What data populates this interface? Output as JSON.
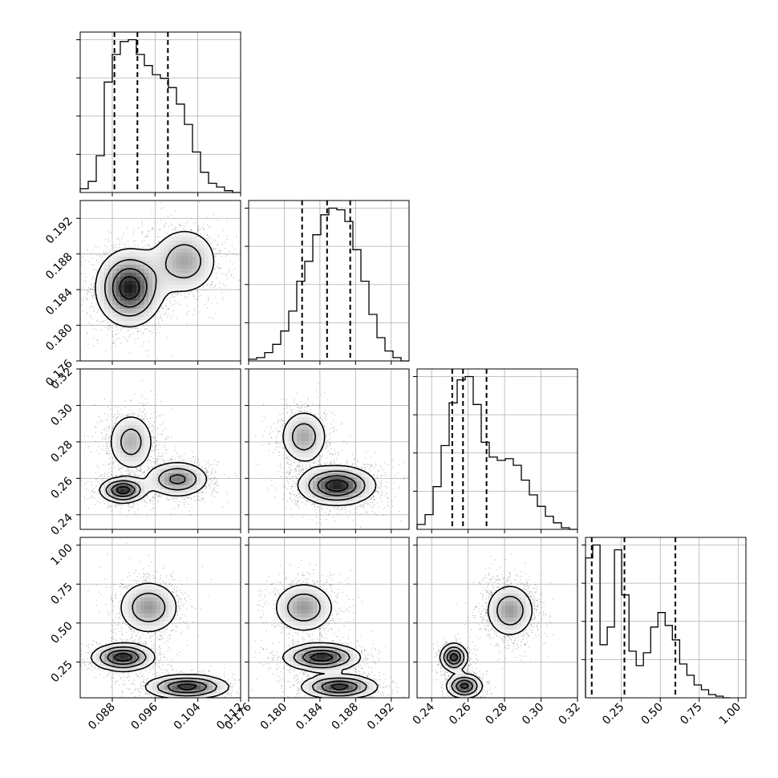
{
  "chart_data": {
    "type": "corner",
    "figure_style": {
      "histogram_color": "#000000",
      "density_color": "#000000",
      "grid": true,
      "quantile_line_style": "dashed"
    },
    "parameters": [
      {
        "range": [
          0.082,
          0.112
        ],
        "ticks": [
          0.088,
          0.096,
          0.104,
          0.112
        ],
        "tick_labels": [
          "0.088",
          "0.096",
          "0.104",
          "0.112"
        ],
        "quantiles": [
          0.0884,
          0.0927,
          0.0984
        ],
        "hist_edges_start": 0.082,
        "hist_bin_width": 0.0015,
        "hist_counts": [
          2,
          6,
          20,
          60,
          75,
          82,
          83,
          75,
          69,
          64,
          62,
          57,
          48,
          37,
          22,
          11,
          5,
          3,
          1,
          0
        ]
      },
      {
        "range": [
          0.176,
          0.194
        ],
        "ticks": [
          0.176,
          0.18,
          0.184,
          0.188,
          0.192
        ],
        "tick_labels": [
          "0.176",
          "0.180",
          "0.184",
          "0.188",
          "0.192"
        ],
        "quantiles": [
          0.182,
          0.1848,
          0.1874
        ],
        "hist_edges_start": 0.176,
        "hist_bin_width": 0.0009,
        "hist_counts": [
          1,
          2,
          5,
          10,
          18,
          30,
          48,
          60,
          76,
          88,
          92,
          91,
          84,
          67,
          48,
          28,
          14,
          6,
          2,
          0
        ]
      },
      {
        "range": [
          0.232,
          0.32
        ],
        "ticks": [
          0.24,
          0.26,
          0.28,
          0.3,
          0.32
        ],
        "tick_labels": [
          "0.24",
          "0.26",
          "0.28",
          "0.30",
          "0.32"
        ],
        "quantiles": [
          0.2513,
          0.2572,
          0.2701
        ],
        "hist_edges_start": 0.232,
        "hist_bin_width": 0.0044,
        "hist_counts": [
          3,
          9,
          26,
          51,
          77,
          91,
          93,
          76,
          53,
          44,
          42,
          43,
          39,
          30,
          21,
          14,
          8,
          4,
          1,
          0
        ]
      },
      {
        "range": [
          0.02,
          1.05
        ],
        "ticks": [
          0.25,
          0.5,
          0.75,
          1.0
        ],
        "tick_labels": [
          "0.25",
          "0.50",
          "0.75",
          "1.00"
        ],
        "quantiles": [
          0.06,
          0.2699,
          0.5972
        ],
        "hist_edges_start": 0.02,
        "hist_bin_width": 0.0465,
        "hist_counts": [
          87,
          95,
          33,
          44,
          92,
          64,
          29,
          20,
          28,
          44,
          53,
          45,
          36,
          21,
          14,
          8,
          5,
          2,
          1,
          0
        ]
      }
    ],
    "pair_panels": [
      {
        "x_param": 0,
        "y_param": 1,
        "modes": [
          {
            "x": 0.0912,
            "y": 0.1842,
            "sx": 0.0032,
            "sy": 0.0022,
            "w": 1.0
          },
          {
            "x": 0.1015,
            "y": 0.1872,
            "sx": 0.0033,
            "sy": 0.002,
            "w": 0.55
          }
        ]
      },
      {
        "x_param": 0,
        "y_param": 2,
        "modes": [
          {
            "x": 0.09,
            "y": 0.2535,
            "sx": 0.0022,
            "sy": 0.0035,
            "w": 1.0
          },
          {
            "x": 0.1002,
            "y": 0.2595,
            "sx": 0.003,
            "sy": 0.005,
            "w": 0.7
          },
          {
            "x": 0.0915,
            "y": 0.28,
            "sx": 0.0023,
            "sy": 0.0085,
            "w": 0.5
          }
        ]
      },
      {
        "x_param": 1,
        "y_param": 2,
        "modes": [
          {
            "x": 0.1859,
            "y": 0.256,
            "sx": 0.0022,
            "sy": 0.0055,
            "w": 1.0
          },
          {
            "x": 0.1822,
            "y": 0.2828,
            "sx": 0.0014,
            "sy": 0.0078,
            "w": 0.55
          }
        ]
      },
      {
        "x_param": 0,
        "y_param": 3,
        "modes": [
          {
            "x": 0.0948,
            "y": 0.6,
            "sx": 0.003,
            "sy": 0.09,
            "w": 0.6
          },
          {
            "x": 0.09,
            "y": 0.28,
            "sx": 0.003,
            "sy": 0.045,
            "w": 1.0
          },
          {
            "x": 0.102,
            "y": 0.09,
            "sx": 0.004,
            "sy": 0.04,
            "w": 0.95
          }
        ]
      },
      {
        "x_param": 1,
        "y_param": 3,
        "modes": [
          {
            "x": 0.1822,
            "y": 0.6,
            "sx": 0.0018,
            "sy": 0.085,
            "w": 0.6
          },
          {
            "x": 0.1842,
            "y": 0.28,
            "sx": 0.0022,
            "sy": 0.045,
            "w": 1.0
          },
          {
            "x": 0.1862,
            "y": 0.09,
            "sx": 0.0022,
            "sy": 0.04,
            "w": 0.95
          }
        ]
      },
      {
        "x_param": 2,
        "y_param": 3,
        "modes": [
          {
            "x": 0.283,
            "y": 0.58,
            "sx": 0.007,
            "sy": 0.09,
            "w": 0.6
          },
          {
            "x": 0.2522,
            "y": 0.28,
            "sx": 0.0038,
            "sy": 0.045,
            "w": 1.0
          },
          {
            "x": 0.258,
            "y": 0.095,
            "sx": 0.005,
            "sy": 0.04,
            "w": 0.95
          }
        ]
      }
    ]
  }
}
